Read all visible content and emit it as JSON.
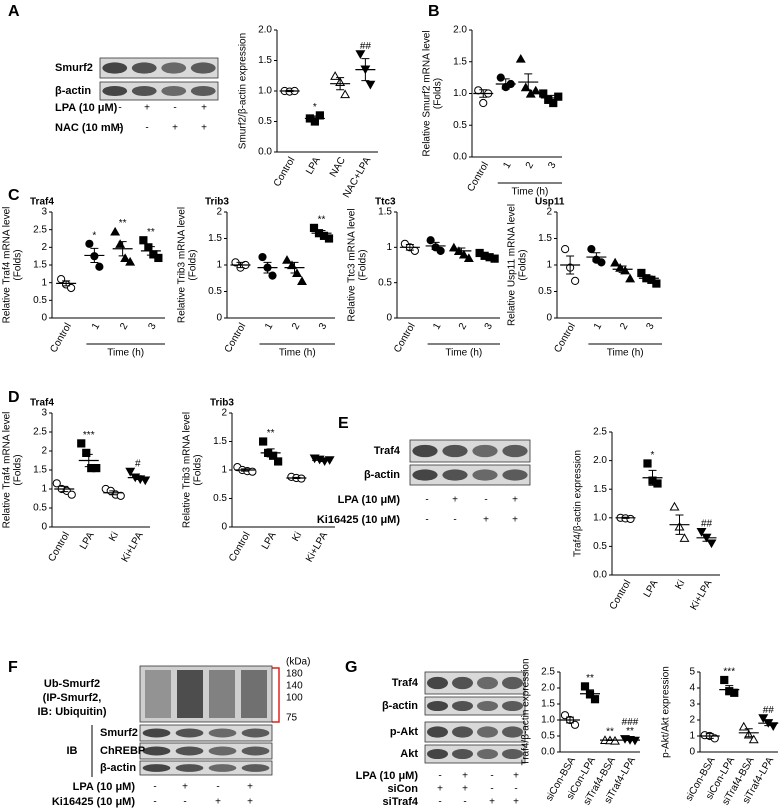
{
  "panel_labels": [
    "A",
    "B",
    "C",
    "D",
    "E",
    "F",
    "G"
  ],
  "blots": {
    "A": {
      "rows": [
        "Smurf2",
        "β-actin"
      ],
      "treatments": [
        {
          "label": "LPA (10 μM)",
          "signs": [
            "-",
            "+",
            "-",
            "+"
          ]
        },
        {
          "label": "NAC (10 mM)",
          "signs": [
            "-",
            "-",
            "+",
            "+"
          ]
        }
      ]
    },
    "E": {
      "rows": [
        "Traf4",
        "β-actin"
      ],
      "treatments": [
        {
          "label": "LPA (10 μM)",
          "signs": [
            "-",
            "+",
            "-",
            "+"
          ]
        },
        {
          "label": "Ki16425 (10 μM)",
          "signs": [
            "-",
            "-",
            "+",
            "+"
          ]
        }
      ]
    },
    "F": {
      "ub_label": [
        "Ub-Smurf2",
        "(IP-Smurf2,",
        "IB: Ubiquitin)"
      ],
      "kda_unit": "(kDa)",
      "kda": [
        180,
        140,
        100,
        75
      ],
      "ib": "IB",
      "rows": [
        "Smurf2",
        "ChREBP",
        "β-actin"
      ],
      "treatments": [
        {
          "label": "LPA (10 μM)",
          "signs": [
            "-",
            "+",
            "-",
            "+"
          ]
        },
        {
          "label": "Ki16425 (10 μM)",
          "signs": [
            "-",
            "-",
            "+",
            "+"
          ]
        }
      ]
    },
    "G": {
      "rows": [
        "Traf4",
        "β-actin",
        "p-Akt",
        "Akt"
      ],
      "treatments": [
        {
          "label": "LPA (10 μM)",
          "signs": [
            "-",
            "+",
            "-",
            "+"
          ]
        },
        {
          "label": "siCon",
          "signs": [
            "+",
            "+",
            "-",
            "-"
          ]
        },
        {
          "label": "siTraf4",
          "signs": [
            "-",
            "-",
            "+",
            "+"
          ]
        }
      ]
    }
  },
  "chart_data": [
    {
      "type": "dot",
      "y_label": [
        "Smurf2/β-actin expression"
      ],
      "color": "#000000",
      "categories": [
        "Control",
        "LPA",
        "NAC",
        "NAC+LPA"
      ],
      "ylim": [
        0,
        2
      ],
      "yticks": [
        {
          "value": 0,
          "label": "0.0"
        },
        0.5,
        {
          "value": 1,
          "label": "1.0"
        },
        1.5,
        {
          "value": 2,
          "label": "2.0"
        }
      ],
      "groups": [
        {
          "marker": "circle-open",
          "points": [
            1.0,
            0.99,
            1.0
          ],
          "mean": 1.0,
          "sem": 0.01
        },
        {
          "marker": "square",
          "points": [
            0.55,
            0.5,
            0.6
          ],
          "mean": 0.55,
          "sem": 0.04,
          "annotations": [
            "*"
          ]
        },
        {
          "marker": "triangle-open",
          "points": [
            1.25,
            1.15,
            0.95
          ],
          "mean": 1.12,
          "sem": 0.1
        },
        {
          "marker": "triangle-down",
          "points": [
            1.6,
            1.35,
            1.1
          ],
          "mean": 1.35,
          "sem": 0.18,
          "annotations": [
            "##"
          ]
        }
      ]
    },
    {
      "type": "dot",
      "y_label": [
        "Relative Smurf2 mRNA level",
        "(Folds)"
      ],
      "x_label": "Time (h)",
      "color": "#000000",
      "categories": [
        "Control",
        "1",
        "2",
        "3"
      ],
      "ylim": [
        0,
        2
      ],
      "yticks": [
        {
          "value": 0,
          "label": "0.0"
        },
        0.5,
        {
          "value": 1,
          "label": "1.0"
        },
        1.5,
        {
          "value": 2,
          "label": "2.0"
        }
      ],
      "groups": [
        {
          "marker": "circle-open",
          "points": [
            1.05,
            0.85,
            1.0
          ],
          "mean": 1.0,
          "sem": 0.06
        },
        {
          "marker": "circle",
          "points": [
            1.25,
            1.1,
            1.15
          ],
          "mean": 1.15,
          "sem": 0.08
        },
        {
          "marker": "triangle",
          "points": [
            1.55,
            1.1,
            1.0,
            1.05
          ],
          "mean": 1.18,
          "sem": 0.13
        },
        {
          "marker": "square",
          "points": [
            1.0,
            0.9,
            0.85,
            0.95
          ],
          "mean": 0.93,
          "sem": 0.04
        }
      ]
    },
    {
      "type": "dot",
      "title": "Traf4",
      "y_label": [
        "Relative Traf4 mRNA level",
        "(Folds)"
      ],
      "x_label": "Time (h)",
      "color": "#000000",
      "categories": [
        "Control",
        "1",
        "2",
        "3"
      ],
      "ylim": [
        0,
        3
      ],
      "yticks": [
        0,
        0.5,
        1,
        1.5,
        2,
        2.5,
        3
      ],
      "groups": [
        {
          "marker": "circle-open",
          "points": [
            1.1,
            0.95,
            0.85
          ],
          "mean": 0.98,
          "sem": 0.07
        },
        {
          "marker": "circle",
          "points": [
            2.1,
            1.75,
            1.45
          ],
          "mean": 1.77,
          "sem": 0.2,
          "annotations": [
            "*"
          ]
        },
        {
          "marker": "triangle",
          "points": [
            2.45,
            2.1,
            1.7,
            1.6
          ],
          "mean": 1.96,
          "sem": 0.2,
          "annotations": [
            "**"
          ]
        },
        {
          "marker": "square",
          "points": [
            2.2,
            2.0,
            1.8,
            1.7
          ],
          "mean": 1.9,
          "sem": 0.12,
          "annotations": [
            "**"
          ]
        }
      ]
    },
    {
      "type": "dot",
      "title": "Trib3",
      "y_label": [
        "Relative Trib3 mRNA level",
        "(Folds)"
      ],
      "x_label": "Time (h)",
      "color": "#000000",
      "categories": [
        "Control",
        "1",
        "2",
        "3"
      ],
      "ylim": [
        0,
        2
      ],
      "yticks": [
        0,
        0.5,
        1,
        1.5,
        2
      ],
      "groups": [
        {
          "marker": "circle-open",
          "points": [
            1.05,
            0.95,
            1.0
          ],
          "mean": 1.0,
          "sem": 0.05
        },
        {
          "marker": "circle",
          "points": [
            1.15,
            0.95,
            0.8
          ],
          "mean": 0.95,
          "sem": 0.1
        },
        {
          "marker": "triangle",
          "points": [
            1.1,
            1.0,
            0.85,
            0.7
          ],
          "mean": 0.95,
          "sem": 0.1
        },
        {
          "marker": "square",
          "points": [
            1.7,
            1.6,
            1.55,
            1.5
          ],
          "mean": 1.6,
          "sem": 0.05,
          "annotations": [
            "**"
          ]
        }
      ]
    },
    {
      "type": "dot",
      "title": "Ttc3",
      "y_label": [
        "Relative Ttc3 mRNA level",
        "(Folds)"
      ],
      "x_label": "Time (h)",
      "color": "#000000",
      "categories": [
        "Control",
        "1",
        "2",
        "3"
      ],
      "ylim": [
        0,
        1.5
      ],
      "yticks": [
        0,
        0.5,
        1,
        1.5
      ],
      "groups": [
        {
          "marker": "circle-open",
          "points": [
            1.05,
            1.0,
            0.95
          ],
          "mean": 1.0,
          "sem": 0.04
        },
        {
          "marker": "circle",
          "points": [
            1.1,
            1.0,
            0.95
          ],
          "mean": 1.02,
          "sem": 0.05
        },
        {
          "marker": "triangle",
          "points": [
            1.0,
            0.95,
            0.9,
            0.85
          ],
          "mean": 0.95,
          "sem": 0.04
        },
        {
          "marker": "square",
          "points": [
            0.92,
            0.88,
            0.86,
            0.84
          ],
          "mean": 0.88,
          "sem": 0.02
        }
      ]
    },
    {
      "type": "dot",
      "title": "Usp11",
      "y_label": [
        "Relative Usp11 mRNA level",
        "(Folds)"
      ],
      "x_label": "Time (h)",
      "color": "#000000",
      "categories": [
        "Control",
        "1",
        "2",
        "3"
      ],
      "ylim": [
        0,
        2
      ],
      "yticks": [
        0,
        0.5,
        1,
        1.5,
        2
      ],
      "groups": [
        {
          "marker": "circle-open",
          "points": [
            1.3,
            0.95,
            0.7
          ],
          "mean": 1.0,
          "sem": 0.17
        },
        {
          "marker": "circle",
          "points": [
            1.3,
            1.1,
            1.05
          ],
          "mean": 1.15,
          "sem": 0.08
        },
        {
          "marker": "triangle",
          "points": [
            1.05,
            0.95,
            0.9,
            0.75
          ],
          "mean": 0.92,
          "sem": 0.06
        },
        {
          "marker": "square",
          "points": [
            0.85,
            0.75,
            0.72,
            0.65
          ],
          "mean": 0.75,
          "sem": 0.04
        }
      ]
    },
    {
      "type": "dot",
      "title": "Traf4",
      "y_label": [
        "Relative Traf4 mRNA level",
        "(Folds)"
      ],
      "color": "#000000",
      "categories": [
        "Control",
        "LPA",
        "Ki",
        "Ki+LPA"
      ],
      "ylim": [
        0,
        3
      ],
      "yticks": [
        0,
        0.5,
        1,
        1.5,
        2,
        2.5,
        3
      ],
      "groups": [
        {
          "marker": "circle-open",
          "points": [
            1.15,
            1.0,
            0.95,
            0.85
          ],
          "mean": 1.0,
          "sem": 0.07
        },
        {
          "marker": "square",
          "points": [
            2.2,
            1.95,
            1.55,
            1.55
          ],
          "mean": 1.75,
          "sem": 0.16,
          "annotations": [
            "***"
          ]
        },
        {
          "marker": "circle-open",
          "points": [
            1.0,
            0.95,
            0.85,
            0.82
          ],
          "mean": 0.9,
          "sem": 0.05
        },
        {
          "marker": "triangle-down",
          "points": [
            1.45,
            1.3,
            1.25,
            1.22
          ],
          "mean": 1.3,
          "sem": 0.05,
          "annotations": [
            "#"
          ]
        }
      ]
    },
    {
      "type": "dot",
      "title": "Trib3",
      "y_label": [
        "Relative Trib3 mRNA level",
        "(Folds)"
      ],
      "color": "#000000",
      "categories": [
        "Control",
        "LPA",
        "Ki",
        "Ki+LPA"
      ],
      "ylim": [
        0,
        2
      ],
      "yticks": [
        0,
        0.5,
        1,
        1.5,
        2
      ],
      "groups": [
        {
          "marker": "circle-open",
          "points": [
            1.05,
            1.0,
            0.98,
            0.97
          ],
          "mean": 1.0,
          "sem": 0.02
        },
        {
          "marker": "square",
          "points": [
            1.5,
            1.3,
            1.25,
            1.15
          ],
          "mean": 1.3,
          "sem": 0.07,
          "annotations": [
            "**"
          ]
        },
        {
          "marker": "circle-open",
          "points": [
            0.88,
            0.86,
            0.85
          ],
          "mean": 0.86,
          "sem": 0.01
        },
        {
          "marker": "triangle-down",
          "points": [
            1.2,
            1.18,
            1.15,
            1.17
          ],
          "mean": 1.17,
          "sem": 0.02
        }
      ]
    },
    {
      "type": "dot",
      "y_label": [
        "Traf4/β-actin expression"
      ],
      "color": "#000000",
      "categories": [
        "Control",
        "LPA",
        "Ki",
        "Ki+LPA"
      ],
      "ylim": [
        0,
        2.5
      ],
      "yticks": [
        {
          "value": 0,
          "label": "0.0"
        },
        0.5,
        {
          "value": 1,
          "label": "1.0"
        },
        1.5,
        {
          "value": 2,
          "label": "2.0"
        },
        2.5
      ],
      "groups": [
        {
          "marker": "circle-open",
          "points": [
            1.0,
            0.99,
            0.98
          ],
          "mean": 1.0,
          "sem": 0.01
        },
        {
          "marker": "square",
          "points": [
            1.95,
            1.65,
            1.6
          ],
          "mean": 1.7,
          "sem": 0.13,
          "annotations": [
            "*"
          ]
        },
        {
          "marker": "triangle-open",
          "points": [
            1.2,
            0.85,
            0.65
          ],
          "mean": 0.88,
          "sem": 0.17
        },
        {
          "marker": "triangle-down",
          "points": [
            0.75,
            0.65,
            0.55
          ],
          "mean": 0.65,
          "sem": 0.06,
          "annotations": [
            "##"
          ]
        }
      ]
    },
    {
      "type": "dot",
      "y_label": [
        "Traf4/β-actin expression"
      ],
      "color": "#000000",
      "categories": [
        "siCon-BSA",
        "siCon-LPA",
        "siTraf4-BSA",
        "siTraf4-LPA"
      ],
      "ylim": [
        0,
        2.5
      ],
      "yticks": [
        {
          "value": 0,
          "label": "0.0"
        },
        0.5,
        {
          "value": 1,
          "label": "1.0"
        },
        1.5,
        {
          "value": 2,
          "label": "2.0"
        },
        2.5
      ],
      "groups": [
        {
          "marker": "circle-open",
          "points": [
            1.15,
            1.0,
            0.85
          ],
          "mean": 1.0,
          "sem": 0.09
        },
        {
          "marker": "square",
          "points": [
            2.05,
            1.8,
            1.65
          ],
          "mean": 1.82,
          "sem": 0.12,
          "annotations": [
            "**"
          ]
        },
        {
          "marker": "triangle-open",
          "points": [
            0.38,
            0.37,
            0.36
          ],
          "mean": 0.37,
          "sem": 0.01,
          "annotations": [
            "**"
          ]
        },
        {
          "marker": "triangle-down",
          "points": [
            0.4,
            0.37,
            0.35
          ],
          "mean": 0.37,
          "sem": 0.01,
          "annotations": [
            "###",
            "**"
          ]
        }
      ]
    },
    {
      "type": "dot",
      "y_label": [
        "p-Akt/Akt expression"
      ],
      "color": "#000000",
      "categories": [
        "siCon-BSA",
        "siCon-LPA",
        "siTraf4-BSA",
        "siTraf4-LPA"
      ],
      "ylim": [
        0,
        5
      ],
      "yticks": [
        0,
        1,
        2,
        3,
        4,
        5
      ],
      "groups": [
        {
          "marker": "circle-open",
          "points": [
            1.05,
            1.0,
            0.85
          ],
          "mean": 1.0,
          "sem": 0.15
        },
        {
          "marker": "square",
          "points": [
            4.5,
            3.8,
            3.7
          ],
          "mean": 3.9,
          "sem": 0.25,
          "annotations": [
            "***"
          ]
        },
        {
          "marker": "triangle-open",
          "points": [
            1.6,
            1.1,
            0.8
          ],
          "mean": 1.2,
          "sem": 0.25
        },
        {
          "marker": "triangle-down",
          "points": [
            2.1,
            1.8,
            1.6
          ],
          "mean": 1.8,
          "sem": 0.15,
          "annotations": [
            "##"
          ]
        }
      ]
    }
  ]
}
